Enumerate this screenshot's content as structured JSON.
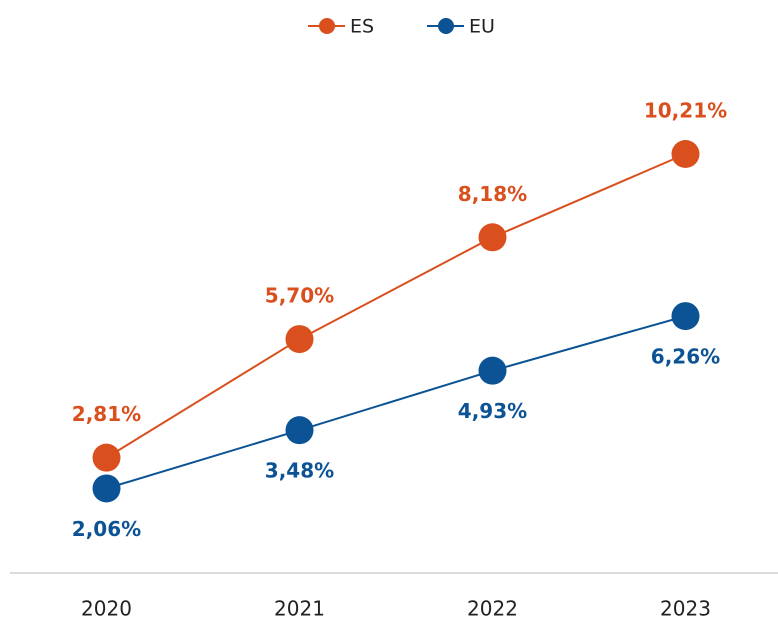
{
  "chart_data": {
    "type": "line",
    "categories": [
      "2020",
      "2021",
      "2022",
      "2023"
    ],
    "series": [
      {
        "name": "ES",
        "color": "#d9501e",
        "values": [
          2.81,
          5.7,
          8.18,
          10.21
        ],
        "value_labels": [
          "2,81%",
          "5,70%",
          "8,18%",
          "10,21%"
        ]
      },
      {
        "name": "EU",
        "color": "#0b5394",
        "values": [
          2.06,
          3.48,
          4.93,
          6.26
        ],
        "value_labels": [
          "2,06%",
          "3,48%",
          "4,93%",
          "6,26%"
        ]
      }
    ],
    "legend": "top",
    "grid": false
  }
}
